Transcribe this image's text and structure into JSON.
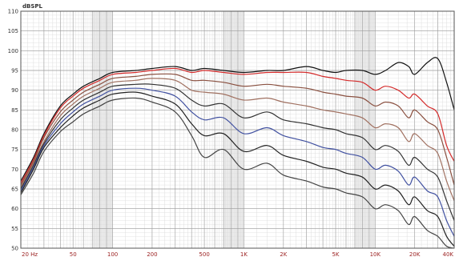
{
  "chart_data": {
    "type": "line",
    "title": "",
    "xlabel": "",
    "ylabel": "dBSPL",
    "xscale": "log",
    "xlim": [
      20,
      40000
    ],
    "ylim": [
      50,
      110
    ],
    "grid": true,
    "legend": "none",
    "y_ticks": [
      50,
      55,
      60,
      65,
      70,
      75,
      80,
      85,
      90,
      95,
      100,
      105,
      110
    ],
    "x_ticks": [
      {
        "value": 20,
        "label": "20 Hz"
      },
      {
        "value": 50,
        "label": "50"
      },
      {
        "value": 100,
        "label": "100"
      },
      {
        "value": 200,
        "label": "200"
      },
      {
        "value": 500,
        "label": "500"
      },
      {
        "value": 1000,
        "label": "1K"
      },
      {
        "value": 2000,
        "label": "2K"
      },
      {
        "value": 5000,
        "label": "5K"
      },
      {
        "value": 10000,
        "label": "10K"
      },
      {
        "value": 20000,
        "label": "20K"
      },
      {
        "value": 40000,
        "label": "40K"
      }
    ],
    "series": [
      {
        "color": "#111111",
        "points": [
          [
            20,
            67
          ],
          [
            25,
            73
          ],
          [
            30,
            79
          ],
          [
            40,
            86
          ],
          [
            50,
            89
          ],
          [
            60,
            91
          ],
          [
            80,
            93
          ],
          [
            100,
            94.5
          ],
          [
            150,
            95
          ],
          [
            200,
            95.5
          ],
          [
            300,
            96
          ],
          [
            400,
            95
          ],
          [
            500,
            95.5
          ],
          [
            700,
            95
          ],
          [
            1000,
            94.5
          ],
          [
            1500,
            95
          ],
          [
            2000,
            95
          ],
          [
            3000,
            96
          ],
          [
            4000,
            95
          ],
          [
            5000,
            94.5
          ],
          [
            6000,
            95
          ],
          [
            8000,
            95
          ],
          [
            10000,
            94
          ],
          [
            12000,
            95
          ],
          [
            15000,
            97
          ],
          [
            18000,
            96
          ],
          [
            20000,
            94
          ],
          [
            25000,
            97
          ],
          [
            30000,
            98
          ],
          [
            35000,
            92
          ],
          [
            40000,
            85
          ]
        ]
      },
      {
        "color": "#d42a2a",
        "points": [
          [
            20,
            66.5
          ],
          [
            25,
            72.5
          ],
          [
            30,
            78.5
          ],
          [
            40,
            85.5
          ],
          [
            50,
            88.5
          ],
          [
            60,
            90.5
          ],
          [
            80,
            92.5
          ],
          [
            100,
            94
          ],
          [
            150,
            94.5
          ],
          [
            200,
            95
          ],
          [
            300,
            95.5
          ],
          [
            400,
            94.5
          ],
          [
            500,
            95
          ],
          [
            700,
            94.5
          ],
          [
            1000,
            94
          ],
          [
            1500,
            94.5
          ],
          [
            2000,
            94.5
          ],
          [
            3000,
            94.5
          ],
          [
            4000,
            93.5
          ],
          [
            5000,
            93
          ],
          [
            6000,
            92.5
          ],
          [
            8000,
            92
          ],
          [
            10000,
            90
          ],
          [
            12000,
            91
          ],
          [
            15000,
            90
          ],
          [
            18000,
            88
          ],
          [
            20000,
            89
          ],
          [
            25000,
            86
          ],
          [
            30000,
            84
          ],
          [
            35000,
            76
          ],
          [
            40000,
            72
          ]
        ]
      },
      {
        "color": "#8a5040",
        "points": [
          [
            20,
            66
          ],
          [
            25,
            72
          ],
          [
            30,
            78
          ],
          [
            40,
            84.5
          ],
          [
            50,
            87.5
          ],
          [
            60,
            89.5
          ],
          [
            80,
            91.5
          ],
          [
            100,
            93
          ],
          [
            150,
            93.5
          ],
          [
            200,
            94
          ],
          [
            300,
            94
          ],
          [
            400,
            92.5
          ],
          [
            500,
            92.5
          ],
          [
            700,
            92
          ],
          [
            1000,
            91
          ],
          [
            1500,
            91.5
          ],
          [
            2000,
            91
          ],
          [
            3000,
            90.5
          ],
          [
            4000,
            89.5
          ],
          [
            5000,
            89
          ],
          [
            6000,
            88.5
          ],
          [
            8000,
            88
          ],
          [
            10000,
            86
          ],
          [
            12000,
            87
          ],
          [
            15000,
            86
          ],
          [
            18000,
            83
          ],
          [
            20000,
            85
          ],
          [
            25000,
            82
          ],
          [
            30000,
            80
          ],
          [
            35000,
            73
          ],
          [
            40000,
            66
          ]
        ]
      },
      {
        "color": "#a07060",
        "points": [
          [
            20,
            65.5
          ],
          [
            25,
            71.5
          ],
          [
            30,
            77
          ],
          [
            40,
            83.5
          ],
          [
            50,
            86.5
          ],
          [
            60,
            88.5
          ],
          [
            80,
            90.5
          ],
          [
            100,
            92
          ],
          [
            150,
            92.5
          ],
          [
            200,
            93
          ],
          [
            300,
            92.5
          ],
          [
            400,
            90
          ],
          [
            500,
            89.5
          ],
          [
            700,
            89
          ],
          [
            1000,
            87.5
          ],
          [
            1500,
            88
          ],
          [
            2000,
            87
          ],
          [
            3000,
            86
          ],
          [
            4000,
            85
          ],
          [
            5000,
            84.5
          ],
          [
            6000,
            84
          ],
          [
            8000,
            83
          ],
          [
            10000,
            80.5
          ],
          [
            12000,
            81.5
          ],
          [
            15000,
            80.5
          ],
          [
            18000,
            77
          ],
          [
            20000,
            79
          ],
          [
            25000,
            76
          ],
          [
            30000,
            74
          ],
          [
            35000,
            67
          ],
          [
            40000,
            62
          ]
        ]
      },
      {
        "color": "#333333",
        "points": [
          [
            20,
            65
          ],
          [
            25,
            71
          ],
          [
            30,
            76.5
          ],
          [
            40,
            82.5
          ],
          [
            50,
            85.5
          ],
          [
            60,
            87.5
          ],
          [
            80,
            89.5
          ],
          [
            100,
            91
          ],
          [
            150,
            91.5
          ],
          [
            200,
            91.5
          ],
          [
            300,
            90.5
          ],
          [
            400,
            87.5
          ],
          [
            500,
            86
          ],
          [
            700,
            86.5
          ],
          [
            1000,
            83
          ],
          [
            1500,
            84.5
          ],
          [
            2000,
            82.5
          ],
          [
            3000,
            81.5
          ],
          [
            4000,
            80.5
          ],
          [
            5000,
            80
          ],
          [
            6000,
            79
          ],
          [
            8000,
            78
          ],
          [
            10000,
            75
          ],
          [
            12000,
            76
          ],
          [
            15000,
            74.5
          ],
          [
            18000,
            71
          ],
          [
            20000,
            73
          ],
          [
            25000,
            70
          ],
          [
            30000,
            68
          ],
          [
            35000,
            62
          ],
          [
            40000,
            57
          ]
        ]
      },
      {
        "color": "#4050a0",
        "points": [
          [
            20,
            64.5
          ],
          [
            25,
            70.5
          ],
          [
            30,
            76
          ],
          [
            40,
            81.5
          ],
          [
            50,
            84.5
          ],
          [
            60,
            86.5
          ],
          [
            80,
            88.5
          ],
          [
            100,
            90
          ],
          [
            150,
            90.5
          ],
          [
            200,
            90
          ],
          [
            300,
            88.5
          ],
          [
            400,
            84.5
          ],
          [
            500,
            82.5
          ],
          [
            700,
            83
          ],
          [
            1000,
            79
          ],
          [
            1500,
            80.5
          ],
          [
            2000,
            78.5
          ],
          [
            3000,
            77
          ],
          [
            4000,
            75.5
          ],
          [
            5000,
            75
          ],
          [
            6000,
            74
          ],
          [
            8000,
            73
          ],
          [
            10000,
            70
          ],
          [
            12000,
            71
          ],
          [
            15000,
            69.5
          ],
          [
            18000,
            66
          ],
          [
            20000,
            68
          ],
          [
            25000,
            64.5
          ],
          [
            30000,
            63
          ],
          [
            35000,
            57
          ],
          [
            40000,
            53
          ]
        ]
      },
      {
        "color": "#222222",
        "points": [
          [
            20,
            64
          ],
          [
            25,
            70
          ],
          [
            30,
            75.5
          ],
          [
            40,
            80.5
          ],
          [
            50,
            83.5
          ],
          [
            60,
            85.5
          ],
          [
            80,
            87.5
          ],
          [
            100,
            89
          ],
          [
            150,
            89.5
          ],
          [
            200,
            88.5
          ],
          [
            300,
            86.5
          ],
          [
            400,
            81.5
          ],
          [
            500,
            78.5
          ],
          [
            700,
            79
          ],
          [
            1000,
            74.5
          ],
          [
            1500,
            76
          ],
          [
            2000,
            73.5
          ],
          [
            3000,
            72
          ],
          [
            4000,
            70.5
          ],
          [
            5000,
            70
          ],
          [
            6000,
            69
          ],
          [
            8000,
            68
          ],
          [
            10000,
            65
          ],
          [
            12000,
            66
          ],
          [
            15000,
            64.5
          ],
          [
            18000,
            61
          ],
          [
            20000,
            63
          ],
          [
            25000,
            59.5
          ],
          [
            30000,
            58
          ],
          [
            35000,
            53
          ],
          [
            40000,
            50.5
          ]
        ]
      },
      {
        "color": "#444444",
        "points": [
          [
            20,
            63.5
          ],
          [
            25,
            69
          ],
          [
            30,
            74.5
          ],
          [
            40,
            79.5
          ],
          [
            50,
            82
          ],
          [
            60,
            84
          ],
          [
            80,
            86
          ],
          [
            100,
            87.5
          ],
          [
            150,
            88
          ],
          [
            200,
            87
          ],
          [
            300,
            84.5
          ],
          [
            400,
            78.5
          ],
          [
            500,
            73
          ],
          [
            700,
            75
          ],
          [
            1000,
            70
          ],
          [
            1500,
            71.5
          ],
          [
            2000,
            68.5
          ],
          [
            3000,
            67
          ],
          [
            4000,
            65.5
          ],
          [
            5000,
            65
          ],
          [
            6000,
            64
          ],
          [
            8000,
            63
          ],
          [
            10000,
            60
          ],
          [
            12000,
            61
          ],
          [
            15000,
            59.5
          ],
          [
            18000,
            56
          ],
          [
            20000,
            58
          ],
          [
            25000,
            54.5
          ],
          [
            30000,
            53
          ],
          [
            35000,
            50.5
          ],
          [
            40000,
            50
          ]
        ]
      }
    ]
  }
}
